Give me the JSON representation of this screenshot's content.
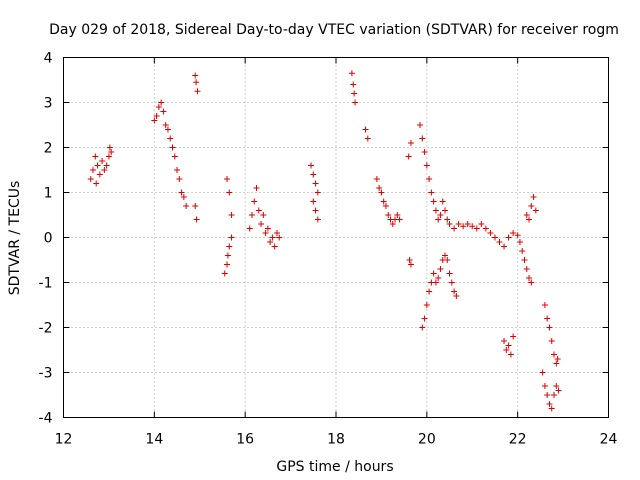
{
  "chart_data": {
    "type": "scatter",
    "title": "Day 029 of 2018, Sidereal Day-to-day VTEC variation (SDTVAR) for receiver rogm",
    "xlabel": "GPS time / hours",
    "ylabel": "SDTVAR / TECUs",
    "xlim": [
      12,
      24
    ],
    "ylim": [
      -4,
      4
    ],
    "x_ticks": [
      12,
      14,
      16,
      18,
      20,
      22,
      24
    ],
    "y_ticks": [
      -4,
      -3,
      -2,
      -1,
      0,
      1,
      2,
      3,
      4
    ],
    "grid": true,
    "marker": "+",
    "marker_color": "#e00000",
    "series": [
      {
        "name": "SDTVAR",
        "x": [
          12.6,
          12.65,
          12.7,
          12.72,
          12.75,
          12.8,
          12.85,
          12.9,
          12.95,
          13.0,
          13.02,
          13.05,
          14.0,
          14.05,
          14.1,
          14.15,
          14.2,
          14.25,
          14.3,
          14.35,
          14.4,
          14.45,
          14.5,
          14.55,
          14.6,
          14.65,
          14.7,
          14.9,
          14.92,
          14.95,
          14.9,
          14.93,
          15.55,
          15.6,
          15.62,
          15.65,
          15.7,
          15.6,
          15.65,
          15.7,
          16.1,
          16.15,
          16.2,
          16.25,
          16.3,
          16.35,
          16.4,
          16.45,
          16.5,
          16.55,
          16.6,
          16.65,
          16.7,
          16.75,
          17.45,
          17.5,
          17.55,
          17.6,
          17.5,
          17.55,
          17.6,
          18.35,
          18.38,
          18.4,
          18.42,
          18.65,
          18.7,
          18.9,
          18.95,
          19.0,
          19.05,
          19.1,
          19.15,
          19.2,
          19.25,
          19.3,
          19.35,
          19.4,
          19.62,
          19.65,
          19.6,
          19.65,
          19.85,
          19.9,
          19.95,
          20.0,
          20.05,
          20.1,
          20.15,
          20.2,
          20.25,
          20.3,
          20.35,
          20.4,
          20.45,
          20.5,
          19.9,
          19.95,
          20.0,
          20.05,
          20.1,
          20.15,
          20.2,
          20.25,
          20.3,
          20.35,
          20.4,
          20.45,
          20.5,
          20.55,
          20.6,
          20.65,
          20.6,
          20.7,
          20.8,
          20.9,
          21.0,
          21.1,
          21.2,
          21.3,
          21.4,
          21.5,
          21.6,
          21.7,
          21.8,
          21.9,
          22.0,
          22.05,
          22.1,
          22.15,
          22.2,
          22.25,
          22.3,
          22.2,
          22.25,
          22.3,
          22.35,
          22.4,
          21.7,
          21.75,
          21.8,
          21.85,
          21.9,
          22.55,
          22.6,
          22.65,
          22.7,
          22.75,
          22.8,
          22.85,
          22.9,
          22.6,
          22.65,
          22.7,
          22.75,
          22.8,
          22.85,
          22.88
        ],
        "y": [
          1.3,
          1.5,
          1.8,
          1.2,
          1.6,
          1.4,
          1.7,
          1.5,
          1.6,
          1.8,
          2.0,
          1.9,
          2.6,
          2.7,
          2.9,
          3.0,
          2.8,
          2.5,
          2.4,
          2.2,
          2.0,
          1.8,
          1.5,
          1.3,
          1.0,
          0.9,
          0.7,
          3.6,
          3.45,
          3.25,
          0.7,
          0.4,
          -0.8,
          -0.6,
          -0.4,
          -0.2,
          0.0,
          1.3,
          1.0,
          0.5,
          0.2,
          0.5,
          0.8,
          1.1,
          0.6,
          0.3,
          0.5,
          0.1,
          0.2,
          -0.1,
          0.0,
          -0.2,
          0.1,
          0.0,
          1.6,
          1.4,
          1.2,
          1.0,
          0.8,
          0.6,
          0.4,
          3.65,
          3.4,
          3.2,
          3.0,
          2.4,
          2.2,
          1.3,
          1.1,
          1.0,
          0.8,
          0.7,
          0.5,
          0.4,
          0.3,
          0.4,
          0.5,
          0.4,
          -0.5,
          -0.6,
          1.8,
          2.1,
          2.5,
          2.2,
          1.9,
          1.6,
          1.3,
          1.0,
          0.8,
          0.6,
          0.4,
          0.5,
          0.8,
          0.6,
          0.4,
          0.3,
          -2.0,
          -1.8,
          -1.5,
          -1.2,
          -1.0,
          -0.8,
          -1.0,
          -0.9,
          -0.7,
          -0.5,
          -0.4,
          -0.5,
          -0.8,
          -1.0,
          -1.2,
          -1.3,
          0.2,
          0.3,
          0.25,
          0.3,
          0.25,
          0.2,
          0.3,
          0.2,
          0.1,
          0.0,
          -0.1,
          -0.2,
          0.0,
          0.1,
          0.05,
          -0.1,
          -0.3,
          -0.5,
          -0.7,
          -0.9,
          -1.0,
          0.5,
          0.4,
          0.7,
          0.9,
          0.6,
          -2.3,
          -2.5,
          -2.4,
          -2.6,
          -2.2,
          -3.0,
          -3.3,
          -3.5,
          -3.7,
          -3.8,
          -3.5,
          -3.3,
          -3.4,
          -1.5,
          -1.8,
          -2.0,
          -2.3,
          -2.6,
          -2.8,
          -2.7
        ]
      }
    ]
  }
}
